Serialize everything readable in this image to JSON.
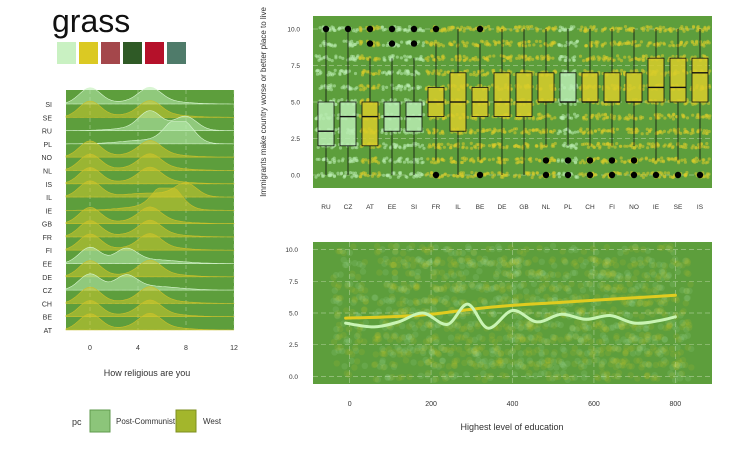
{
  "palette": {
    "title": "grass",
    "swatches": [
      "#c9f1c2",
      "#dbc923",
      "#a4474b",
      "#2f5a26",
      "#b5112a",
      "#4f7b6a"
    ]
  },
  "colors": {
    "panel_bg": "#5d9e3c",
    "post_communist": "#b9ecb1",
    "west": "#d8cc2a",
    "smooth_line_pc": "#c9f4b4",
    "smooth_line_west": "#e0cc1f"
  },
  "chart_data": [
    {
      "type": "ridgeline",
      "xlabel": "How religious are you",
      "ylabel": "",
      "xlim": [
        -2,
        12
      ],
      "xticks": [
        0,
        4,
        8,
        12
      ],
      "categories": [
        "SI",
        "SE",
        "RU",
        "PL",
        "NO",
        "NL",
        "IS",
        "IL",
        "IE",
        "GB",
        "FR",
        "FI",
        "EE",
        "DE",
        "CZ",
        "CH",
        "BE",
        "AT"
      ],
      "group": {
        "SI": "Post-Communist",
        "SE": "West",
        "RU": "Post-Communist",
        "PL": "Post-Communist",
        "NO": "West",
        "NL": "West",
        "IS": "West",
        "IL": "West",
        "IE": "West",
        "GB": "West",
        "FR": "West",
        "FI": "West",
        "EE": "Post-Communist",
        "DE": "West",
        "CZ": "Post-Communist",
        "CH": "West",
        "BE": "West",
        "AT": "West"
      },
      "peaks": {
        "SI": [
          0,
          5
        ],
        "SE": [
          0,
          5
        ],
        "RU": [
          5,
          8
        ],
        "PL": [
          7,
          8
        ],
        "NO": [
          0,
          5
        ],
        "NL": [
          0,
          5
        ],
        "IS": [
          0,
          5
        ],
        "IL": [
          0,
          8
        ],
        "IE": [
          6,
          7
        ],
        "GB": [
          0,
          5
        ],
        "FR": [
          0,
          5
        ],
        "FI": [
          0,
          5
        ],
        "EE": [
          0,
          3
        ],
        "DE": [
          0,
          5
        ],
        "CZ": [
          0,
          3
        ],
        "CH": [
          0,
          5
        ],
        "BE": [
          0,
          5
        ],
        "AT": [
          0,
          5
        ]
      }
    },
    {
      "type": "boxplot",
      "xlabel": "",
      "ylabel": "Immigrants make country worse or better place to live",
      "ylim": [
        0,
        10
      ],
      "yticks": [
        0.0,
        2.5,
        5.0,
        7.5,
        10.0
      ],
      "categories": [
        "RU",
        "CZ",
        "AT",
        "EE",
        "SI",
        "FR",
        "IL",
        "BE",
        "DE",
        "GB",
        "NL",
        "PL",
        "CH",
        "FI",
        "NO",
        "IE",
        "SE",
        "IS"
      ],
      "series": [
        {
          "cat": "RU",
          "group": "Post-Communist",
          "q1": 2,
          "median": 3,
          "q3": 5,
          "low": 0,
          "high": 10,
          "outliers": [
            10
          ]
        },
        {
          "cat": "CZ",
          "group": "Post-Communist",
          "q1": 2,
          "median": 4,
          "q3": 5,
          "low": 0,
          "high": 10,
          "outliers": [
            10
          ]
        },
        {
          "cat": "AT",
          "group": "West",
          "q1": 2,
          "median": 4,
          "q3": 5,
          "low": 0,
          "high": 8,
          "outliers": [
            9,
            10
          ]
        },
        {
          "cat": "EE",
          "group": "Post-Communist",
          "q1": 3,
          "median": 4,
          "q3": 5,
          "low": 0,
          "high": 8,
          "outliers": [
            9,
            10
          ]
        },
        {
          "cat": "SI",
          "group": "Post-Communist",
          "q1": 3,
          "median": 4,
          "q3": 5,
          "low": 0,
          "high": 8,
          "outliers": [
            9,
            10
          ]
        },
        {
          "cat": "FR",
          "group": "West",
          "q1": 4,
          "median": 5,
          "q3": 6,
          "low": 1,
          "high": 9,
          "outliers": [
            0,
            10
          ]
        },
        {
          "cat": "IL",
          "group": "West",
          "q1": 3,
          "median": 5,
          "q3": 7,
          "low": 0,
          "high": 10,
          "outliers": []
        },
        {
          "cat": "BE",
          "group": "West",
          "q1": 4,
          "median": 5,
          "q3": 6,
          "low": 1,
          "high": 9,
          "outliers": [
            0,
            10
          ]
        },
        {
          "cat": "DE",
          "group": "West",
          "q1": 4,
          "median": 5,
          "q3": 7,
          "low": 0,
          "high": 10,
          "outliers": []
        },
        {
          "cat": "GB",
          "group": "West",
          "q1": 4,
          "median": 5,
          "q3": 7,
          "low": 0,
          "high": 10,
          "outliers": []
        },
        {
          "cat": "NL",
          "group": "West",
          "q1": 5,
          "median": 5,
          "q3": 7,
          "low": 2,
          "high": 10,
          "outliers": [
            0,
            1
          ]
        },
        {
          "cat": "PL",
          "group": "Post-Communist",
          "q1": 5,
          "median": 5,
          "q3": 7,
          "low": 2,
          "high": 10,
          "outliers": [
            0,
            1
          ]
        },
        {
          "cat": "CH",
          "group": "West",
          "q1": 5,
          "median": 5,
          "q3": 7,
          "low": 2,
          "high": 10,
          "outliers": [
            0,
            1
          ]
        },
        {
          "cat": "FI",
          "group": "West",
          "q1": 5,
          "median": 5,
          "q3": 7,
          "low": 2,
          "high": 10,
          "outliers": [
            0,
            1
          ]
        },
        {
          "cat": "NO",
          "group": "West",
          "q1": 5,
          "median": 5,
          "q3": 7,
          "low": 2,
          "high": 10,
          "outliers": [
            0,
            1
          ]
        },
        {
          "cat": "IE",
          "group": "West",
          "q1": 5,
          "median": 6,
          "q3": 8,
          "low": 1,
          "high": 10,
          "outliers": [
            0
          ]
        },
        {
          "cat": "SE",
          "group": "West",
          "q1": 5,
          "median": 6,
          "q3": 8,
          "low": 1,
          "high": 10,
          "outliers": [
            0
          ]
        },
        {
          "cat": "IS",
          "group": "West",
          "q1": 5,
          "median": 7,
          "q3": 8,
          "low": 1,
          "high": 10,
          "outliers": [
            0
          ]
        }
      ]
    },
    {
      "type": "scatter",
      "xlabel": "Highest level of education",
      "ylabel": "",
      "xlim": [
        -90,
        890
      ],
      "ylim": [
        -0.6,
        10.6
      ],
      "xticks": [
        0,
        200,
        400,
        600,
        800
      ],
      "yticks": [
        0.0,
        2.5,
        5.0,
        7.5,
        10.0
      ],
      "smooth": [
        {
          "group": "West",
          "x": [
            -10,
            100,
            200,
            300,
            400,
            500,
            600,
            700,
            800
          ],
          "y": [
            4.6,
            4.7,
            4.9,
            5.3,
            5.6,
            5.8,
            6.0,
            6.2,
            6.4
          ]
        },
        {
          "group": "Post-Communist",
          "x": [
            -10,
            60,
            120,
            180,
            240,
            290,
            340,
            400,
            460,
            520,
            580,
            640,
            700,
            760,
            800
          ],
          "y": [
            4.2,
            3.9,
            4.3,
            5.0,
            4.1,
            5.7,
            3.8,
            5.2,
            4.3,
            4.9,
            4.5,
            4.8,
            4.2,
            4.4,
            4.7
          ]
        }
      ]
    }
  ],
  "legend": {
    "title": "pc",
    "items": [
      {
        "label": "Post-Communist",
        "color": "#8cc57a"
      },
      {
        "label": "West",
        "color": "#a3b62c"
      }
    ]
  }
}
